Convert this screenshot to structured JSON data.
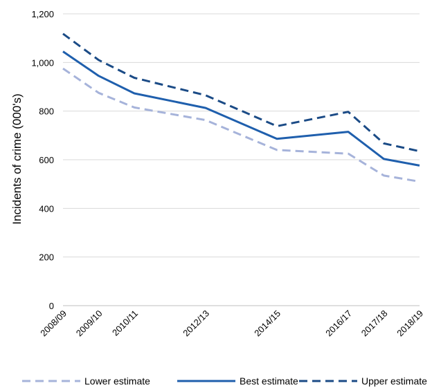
{
  "chart_data": {
    "type": "line",
    "x": [
      "2008/09",
      "2009/10",
      "2010/11",
      "2012/13",
      "2014/15",
      "2016/17",
      "2017/18",
      "2018/19"
    ],
    "x_positions": [
      2008,
      2009,
      2010,
      2012,
      2014,
      2016,
      2017,
      2018
    ],
    "xlim": [
      2008,
      2018
    ],
    "ylabel": "Incidents of crime (000's)",
    "xlabel": "",
    "title": "",
    "ylim": [
      0,
      1200
    ],
    "yticks": [
      "0",
      "200",
      "400",
      "600",
      "800",
      "1,000",
      "1,200"
    ],
    "grid": true,
    "legend_position": "bottom",
    "series": [
      {
        "name": "Lower estimate",
        "values": [
          975,
          875,
          815,
          763,
          640,
          625,
          535,
          510
        ],
        "color": "#a6b3da",
        "style": "dashed"
      },
      {
        "name": "Best estimate",
        "values": [
          1045,
          945,
          873,
          813,
          686,
          715,
          603,
          576
        ],
        "color": "#1f5fad",
        "style": "solid"
      },
      {
        "name": "Upper estimate",
        "values": [
          1118,
          1010,
          937,
          865,
          738,
          797,
          667,
          635
        ],
        "color": "#1b4b86",
        "style": "dashed"
      }
    ]
  }
}
